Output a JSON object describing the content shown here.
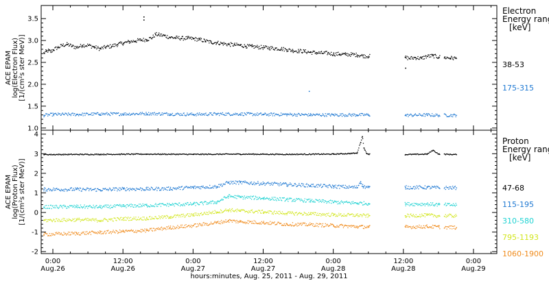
{
  "figure": {
    "x_caption": "hours:minutes, Aug. 25, 2011 - Aug. 29, 2011",
    "x_ticks": [
      {
        "t": 0,
        "time": "0:00",
        "date": "Aug.26"
      },
      {
        "t": 12,
        "time": "12:00",
        "date": "Aug.26"
      },
      {
        "t": 24,
        "time": "0:00",
        "date": "Aug.27"
      },
      {
        "t": 36,
        "time": "12:00",
        "date": "Aug.27"
      },
      {
        "t": 48,
        "time": "0:00",
        "date": "Aug.28"
      },
      {
        "t": 60,
        "time": "12:00",
        "date": "Aug.28"
      },
      {
        "t": 72,
        "time": "0:00",
        "date": "Aug.29"
      }
    ]
  },
  "chart_data": [
    {
      "type": "scatter",
      "panel": "electron",
      "ylabel_lines": [
        "ACE EPAM",
        "log(Electron Flux)",
        "[1/(cm²s ster MeV)]"
      ],
      "ylim": [
        0.95,
        3.8
      ],
      "yticks": [
        "1.0",
        "1.5",
        "2.0",
        "2.5",
        "3.0",
        "3.5"
      ],
      "legend_title": [
        "Electron",
        "Energy range",
        "[keV]"
      ],
      "series": [
        {
          "name": "38-53",
          "color": "#000000",
          "points": [
            [
              -1.6,
              2.72
            ],
            [
              -1.2,
              2.76
            ],
            [
              -0.8,
              2.78
            ],
            [
              -0.4,
              2.75
            ],
            [
              0,
              2.8
            ],
            [
              0.8,
              2.85
            ],
            [
              1.6,
              2.9
            ],
            [
              2.4,
              2.92
            ],
            [
              3.2,
              2.88
            ],
            [
              4,
              2.85
            ],
            [
              5,
              2.9
            ],
            [
              6,
              2.9
            ],
            [
              7,
              2.86
            ],
            [
              8,
              2.82
            ],
            [
              9,
              2.86
            ],
            [
              10,
              2.88
            ],
            [
              11,
              2.92
            ],
            [
              12,
              2.95
            ],
            [
              13,
              2.98
            ],
            [
              14,
              3.0
            ],
            [
              15,
              3.02
            ],
            [
              16,
              3.03
            ],
            [
              17,
              3.08
            ],
            [
              17.5,
              3.15
            ],
            [
              18,
              3.14
            ],
            [
              19,
              3.12
            ],
            [
              20,
              3.08
            ],
            [
              21,
              3.07
            ],
            [
              22,
              3.06
            ],
            [
              23,
              3.06
            ],
            [
              24,
              3.05
            ],
            [
              25,
              3.03
            ],
            [
              26,
              3.0
            ],
            [
              27,
              2.97
            ],
            [
              28,
              2.96
            ],
            [
              29,
              2.94
            ],
            [
              30,
              2.92
            ],
            [
              31,
              2.91
            ],
            [
              32,
              2.9
            ],
            [
              33,
              2.88
            ],
            [
              34,
              2.87
            ],
            [
              35,
              2.86
            ],
            [
              36,
              2.85
            ],
            [
              37,
              2.84
            ],
            [
              38,
              2.83
            ],
            [
              39,
              2.82
            ],
            [
              40,
              2.8
            ],
            [
              41,
              2.78
            ],
            [
              42,
              2.77
            ],
            [
              43,
              2.76
            ],
            [
              44,
              2.74
            ],
            [
              45,
              2.73
            ],
            [
              46,
              2.72
            ],
            [
              47,
              2.72
            ],
            [
              48,
              2.7
            ],
            [
              49,
              2.7
            ],
            [
              50,
              2.69
            ],
            [
              51,
              2.69
            ],
            [
              52,
              2.68
            ],
            [
              53,
              2.66
            ],
            [
              54,
              2.65
            ],
            [
              60.3,
              2.62
            ],
            [
              61,
              2.6
            ],
            [
              62,
              2.62
            ],
            [
              63,
              2.6
            ],
            [
              64,
              2.65
            ],
            [
              65,
              2.66
            ],
            [
              66,
              2.63
            ],
            [
              67,
              2.62
            ],
            [
              68,
              2.61
            ],
            [
              69,
              2.6
            ]
          ]
        },
        {
          "name": "175-315",
          "color": "#1e78d2",
          "points": [
            [
              -1.6,
              1.3
            ],
            [
              0,
              1.32
            ],
            [
              4,
              1.32
            ],
            [
              8,
              1.33
            ],
            [
              12,
              1.33
            ],
            [
              16,
              1.34
            ],
            [
              20,
              1.33
            ],
            [
              24,
              1.32
            ],
            [
              28,
              1.33
            ],
            [
              32,
              1.33
            ],
            [
              36,
              1.32
            ],
            [
              40,
              1.32
            ],
            [
              44,
              1.31
            ],
            [
              48,
              1.31
            ],
            [
              52,
              1.31
            ],
            [
              54,
              1.31
            ],
            [
              60.3,
              1.3
            ],
            [
              64,
              1.31
            ],
            [
              66,
              1.3
            ],
            [
              69,
              1.3
            ]
          ]
        }
      ],
      "annotations": [
        {
          "t": 15.5,
          "y": 3.55,
          "series": "38-53"
        },
        {
          "t": 15.5,
          "y": 3.48,
          "series": "38-53"
        },
        {
          "t": 43.8,
          "y": 1.85,
          "series": "175-315"
        },
        {
          "t": 60.3,
          "y": 2.38,
          "series": "38-53"
        }
      ]
    },
    {
      "type": "scatter",
      "panel": "proton",
      "ylabel_lines": [
        "ACE EPAM",
        "log(Proton Flux)",
        "[1/(cm²s ster MeV)]"
      ],
      "ylim": [
        -2.1,
        4.2
      ],
      "yticks": [
        "-2",
        "-1",
        "0",
        "1",
        "2",
        "3",
        "4"
      ],
      "legend_title": [
        "Proton",
        "Energy range",
        "[keV]"
      ],
      "series": [
        {
          "name": "47-68",
          "color": "#000000",
          "points": [
            [
              -1.6,
              2.98
            ],
            [
              0,
              2.98
            ],
            [
              8,
              2.99
            ],
            [
              16,
              3.0
            ],
            [
              24,
              2.99
            ],
            [
              32,
              3.0
            ],
            [
              40,
              2.99
            ],
            [
              48,
              3.0
            ],
            [
              52,
              3.05
            ],
            [
              52.6,
              3.6
            ],
            [
              52.9,
              3.9
            ],
            [
              53.2,
              3.3
            ],
            [
              53.6,
              3.05
            ],
            [
              54,
              3.0
            ],
            [
              60.3,
              2.98
            ],
            [
              64,
              3.0
            ],
            [
              65,
              3.2
            ],
            [
              66,
              3.0
            ],
            [
              69,
              2.98
            ]
          ]
        },
        {
          "name": "115-195",
          "color": "#1e78d2",
          "points": [
            [
              -1.6,
              1.2
            ],
            [
              4,
              1.2
            ],
            [
              8,
              1.18
            ],
            [
              12,
              1.22
            ],
            [
              16,
              1.22
            ],
            [
              20,
              1.24
            ],
            [
              24,
              1.3
            ],
            [
              28,
              1.35
            ],
            [
              30,
              1.55
            ],
            [
              32,
              1.55
            ],
            [
              36,
              1.5
            ],
            [
              40,
              1.45
            ],
            [
              44,
              1.4
            ],
            [
              48,
              1.35
            ],
            [
              52,
              1.3
            ],
            [
              52.6,
              1.6
            ],
            [
              53,
              1.35
            ],
            [
              54,
              1.3
            ],
            [
              60.3,
              1.3
            ],
            [
              64,
              1.3
            ],
            [
              66,
              1.28
            ],
            [
              69,
              1.28
            ]
          ]
        },
        {
          "name": "310-580",
          "color": "#1ed2d2",
          "points": [
            [
              -1.6,
              0.3
            ],
            [
              4,
              0.32
            ],
            [
              8,
              0.3
            ],
            [
              12,
              0.35
            ],
            [
              16,
              0.38
            ],
            [
              20,
              0.42
            ],
            [
              24,
              0.45
            ],
            [
              28,
              0.55
            ],
            [
              30,
              0.85
            ],
            [
              32,
              0.8
            ],
            [
              36,
              0.75
            ],
            [
              40,
              0.68
            ],
            [
              44,
              0.62
            ],
            [
              48,
              0.55
            ],
            [
              52,
              0.5
            ],
            [
              54,
              0.48
            ],
            [
              60.3,
              0.45
            ],
            [
              64,
              0.45
            ],
            [
              66,
              0.42
            ],
            [
              69,
              0.4
            ]
          ]
        },
        {
          "name": "795-1193",
          "color": "#d2e61e",
          "points": [
            [
              -1.6,
              -0.38
            ],
            [
              4,
              -0.35
            ],
            [
              8,
              -0.38
            ],
            [
              12,
              -0.3
            ],
            [
              16,
              -0.28
            ],
            [
              20,
              -0.2
            ],
            [
              24,
              -0.1
            ],
            [
              28,
              0.05
            ],
            [
              30,
              0.15
            ],
            [
              32,
              0.1
            ],
            [
              36,
              0.05
            ],
            [
              40,
              -0.02
            ],
            [
              44,
              -0.05
            ],
            [
              48,
              -0.1
            ],
            [
              52,
              -0.12
            ],
            [
              54,
              -0.15
            ],
            [
              60.3,
              -0.15
            ],
            [
              64,
              -0.12
            ],
            [
              66,
              -0.15
            ],
            [
              69,
              -0.15
            ]
          ]
        },
        {
          "name": "1060-1900",
          "color": "#f08c1e",
          "points": [
            [
              -1.6,
              -1.1
            ],
            [
              4,
              -1.05
            ],
            [
              8,
              -1.0
            ],
            [
              12,
              -0.95
            ],
            [
              16,
              -0.9
            ],
            [
              20,
              -0.75
            ],
            [
              24,
              -0.65
            ],
            [
              28,
              -0.5
            ],
            [
              30,
              -0.4
            ],
            [
              32,
              -0.45
            ],
            [
              36,
              -0.5
            ],
            [
              40,
              -0.58
            ],
            [
              44,
              -0.6
            ],
            [
              48,
              -0.65
            ],
            [
              52,
              -0.7
            ],
            [
              54,
              -0.72
            ],
            [
              60.3,
              -0.72
            ],
            [
              64,
              -0.7
            ],
            [
              66,
              -0.72
            ],
            [
              69,
              -0.75
            ]
          ]
        }
      ],
      "annotations": []
    }
  ]
}
